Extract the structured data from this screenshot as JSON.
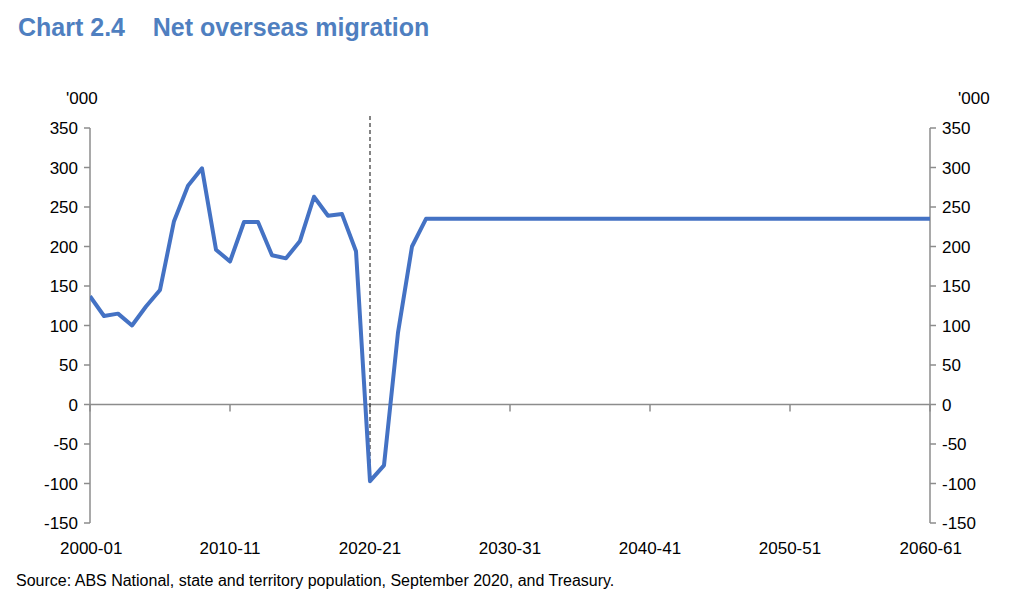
{
  "chart_data": {
    "type": "line",
    "title": "Chart 2.4    Net overseas migration",
    "y_label": "'000",
    "source": "Source: ABS National, state and territory population, September 2020, and Treasury.",
    "x": [
      2000,
      2001,
      2002,
      2003,
      2004,
      2005,
      2006,
      2007,
      2008,
      2009,
      2010,
      2011,
      2012,
      2013,
      2014,
      2015,
      2016,
      2017,
      2018,
      2019,
      2020,
      2021,
      2022,
      2023,
      2024,
      2025,
      2026,
      2027,
      2028,
      2029,
      2030,
      2031,
      2032,
      2033,
      2034,
      2035,
      2036,
      2037,
      2038,
      2039,
      2040,
      2041,
      2042,
      2043,
      2044,
      2045,
      2046,
      2047,
      2048,
      2049,
      2050,
      2051,
      2052,
      2053,
      2054,
      2055,
      2056,
      2057,
      2058,
      2059,
      2060
    ],
    "values": [
      137,
      112,
      115,
      100,
      124,
      145,
      232,
      277,
      299,
      196,
      181,
      231,
      231,
      189,
      185,
      207,
      263,
      239,
      241,
      194,
      -97,
      -77,
      91,
      200,
      235,
      235,
      235,
      235,
      235,
      235,
      235,
      235,
      235,
      235,
      235,
      235,
      235,
      235,
      235,
      235,
      235,
      235,
      235,
      235,
      235,
      235,
      235,
      235,
      235,
      235,
      235,
      235,
      235,
      235,
      235,
      235,
      235,
      235,
      235,
      235,
      235
    ],
    "color": "#4472c4",
    "vline": 2020,
    "xlim": [
      2000,
      2060
    ],
    "xticks": [
      {
        "value": 2000,
        "label": "2000-01"
      },
      {
        "value": 2010,
        "label": "2010-11"
      },
      {
        "value": 2020,
        "label": "2020-21"
      },
      {
        "value": 2030,
        "label": "2030-31"
      },
      {
        "value": 2040,
        "label": "2040-41"
      },
      {
        "value": 2050,
        "label": "2050-51"
      },
      {
        "value": 2060,
        "label": "2060-61"
      }
    ],
    "ylim": [
      -150,
      350
    ],
    "yticks": [
      -150,
      -100,
      -50,
      0,
      50,
      100,
      150,
      200,
      250,
      300,
      350
    ],
    "grid": false
  }
}
